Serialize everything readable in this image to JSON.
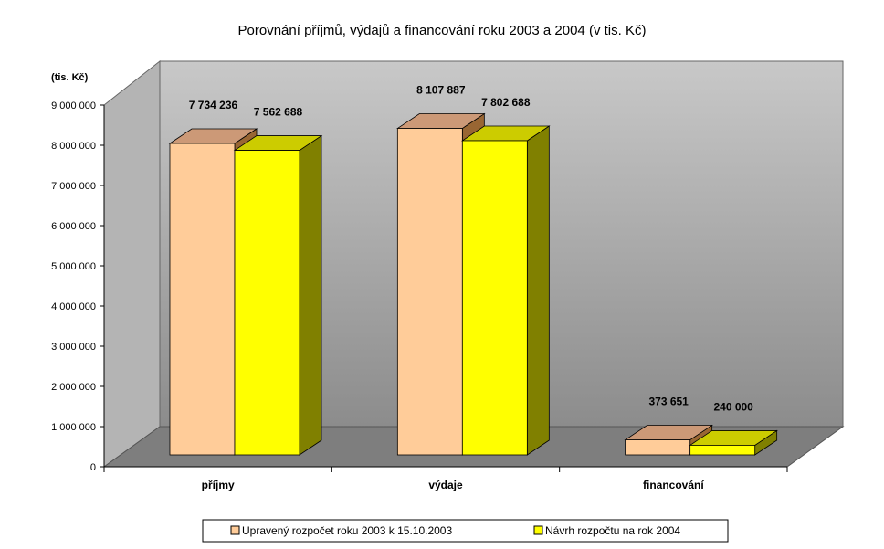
{
  "chart_data": {
    "type": "bar",
    "title": "Porovnání příjmů, výdajů a financování roku 2003 a 2004 (v tis. Kč)",
    "unit_label": "(tis. Kč)",
    "categories": [
      "příjmy",
      "výdaje",
      "financování"
    ],
    "series": [
      {
        "name": "Upravený rozpočet roku 2003 k 15.10.2003",
        "values": [
          7734236,
          8107887,
          373651
        ],
        "labels": [
          "7 734 236",
          "8 107 887",
          "373 651"
        ],
        "color": "#FFCC99"
      },
      {
        "name": "Návrh rozpočtu na rok 2004",
        "values": [
          7562688,
          7802688,
          240000
        ],
        "labels": [
          "7 562 688",
          "7 802 688",
          "240 000"
        ],
        "color": "#FFFF00"
      }
    ],
    "ylim": [
      0,
      9000000
    ],
    "yticks": [
      "0",
      "1 000 000",
      "2 000 000",
      "3 000 000",
      "4 000 000",
      "5 000 000",
      "6 000 000",
      "7 000 000",
      "8 000 000",
      "9 000 000"
    ],
    "grid": false,
    "legend_position": "bottom"
  }
}
